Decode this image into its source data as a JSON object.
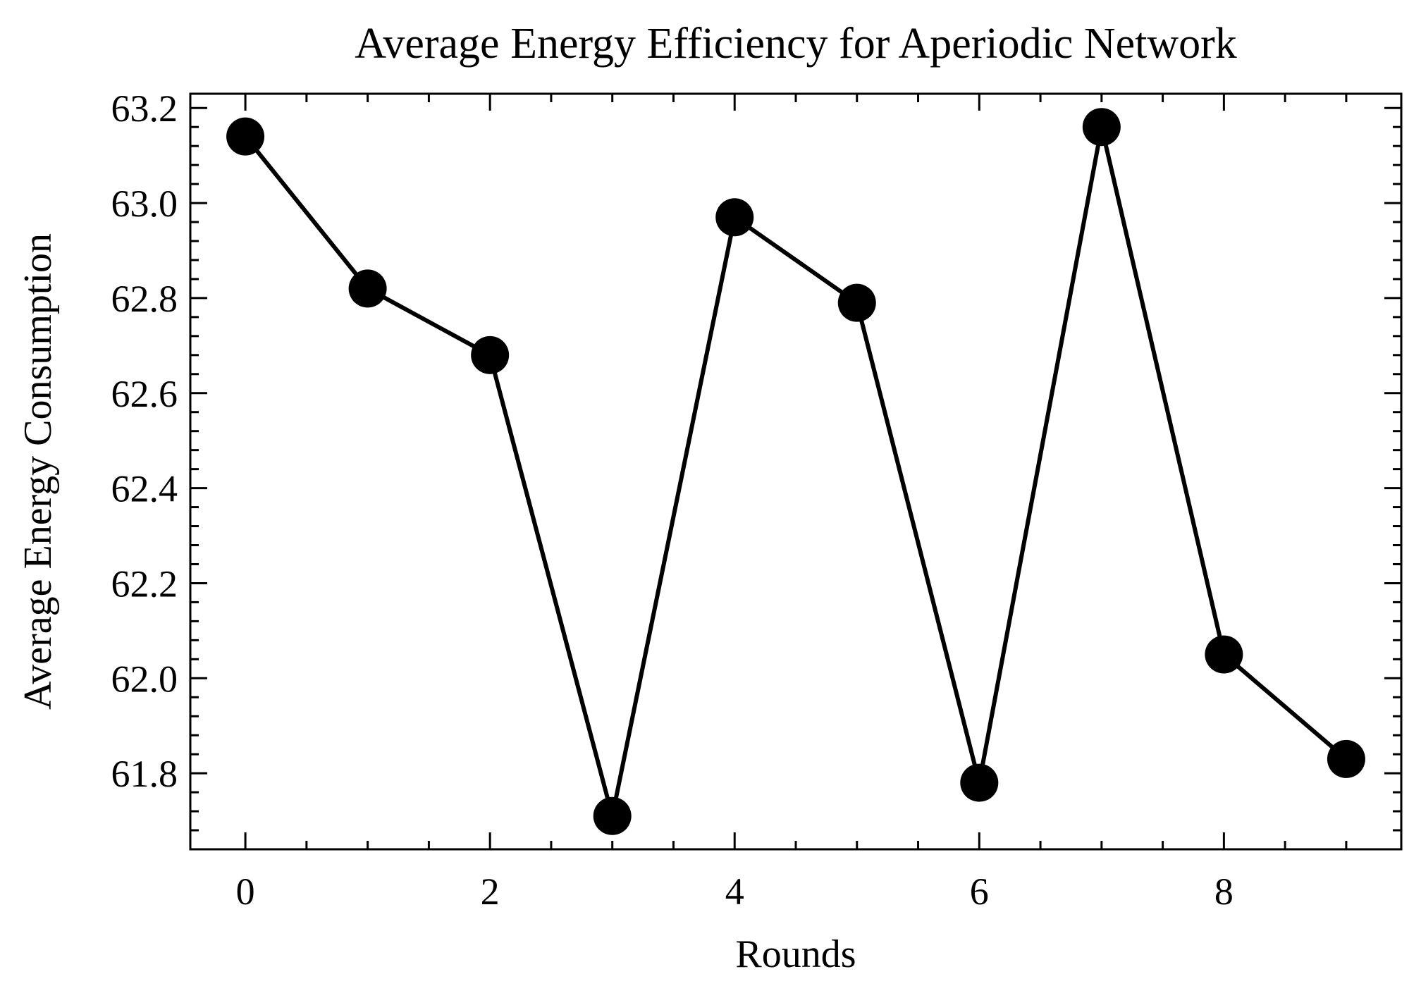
{
  "chart_data": {
    "type": "line",
    "title": "Average Energy Efficiency for Aperiodic Network",
    "xlabel": "Rounds",
    "ylabel": "Average Energy Consumption",
    "x": [
      0,
      1,
      2,
      3,
      4,
      5,
      6,
      7,
      8,
      9
    ],
    "series": [
      {
        "values": [
          63.14,
          62.82,
          62.68,
          61.71,
          62.97,
          62.79,
          61.78,
          63.16,
          62.05,
          61.83
        ]
      }
    ],
    "xlim": [
      -0.45,
      9.45
    ],
    "ylim": [
      61.64,
      63.23
    ],
    "xticks": [
      0,
      2,
      4,
      6,
      8
    ],
    "xtick_labels": [
      "0",
      "2",
      "4",
      "6",
      "8"
    ],
    "yticks": [
      61.8,
      62.0,
      62.2,
      62.4,
      62.6,
      62.8,
      63.0,
      63.2
    ],
    "ytick_labels": [
      "61.8",
      "62.0",
      "62.2",
      "62.4",
      "62.6",
      "62.8",
      "63.0",
      "63.2"
    ],
    "grid": false,
    "line_color": "#000000",
    "marker_color": "#000000"
  }
}
